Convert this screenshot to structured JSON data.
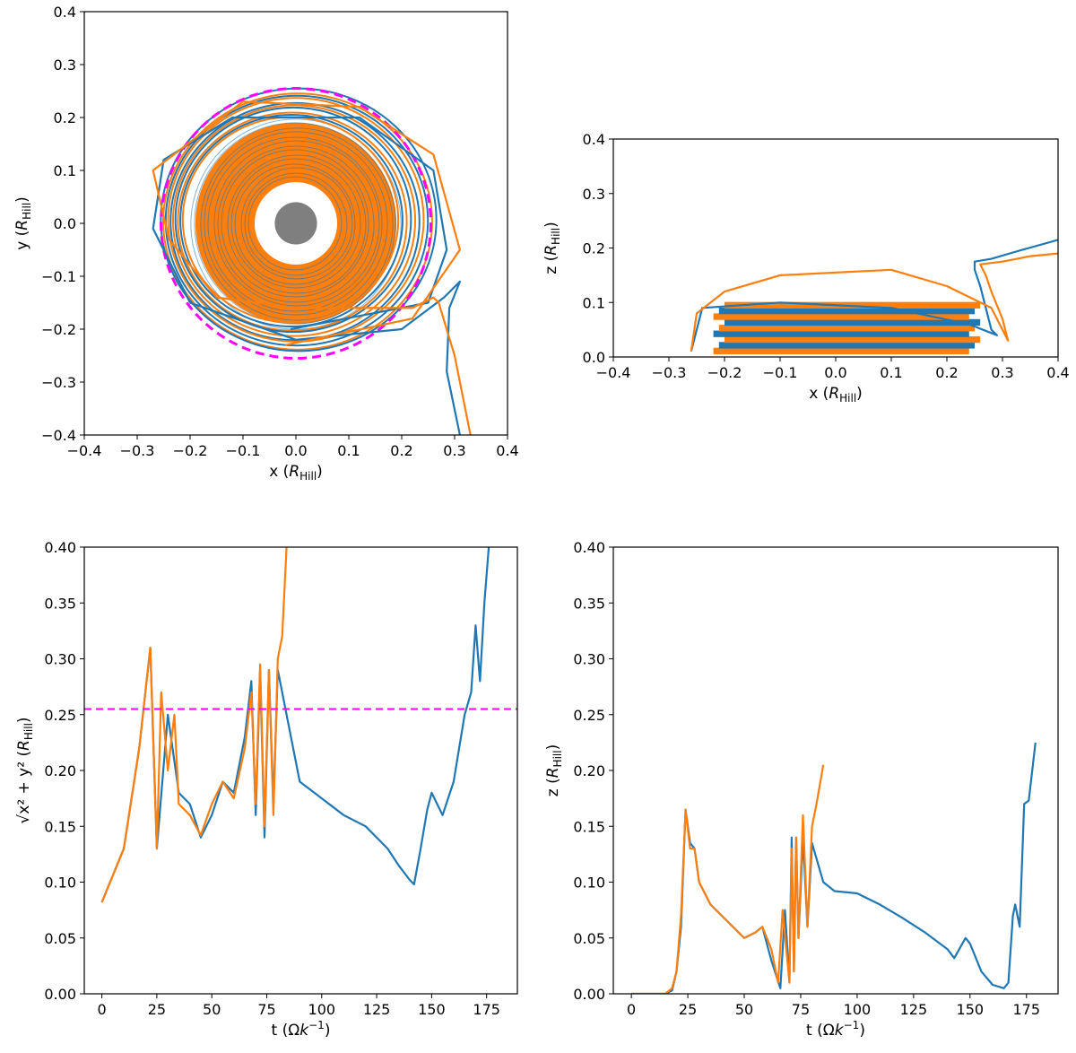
{
  "colors": {
    "series_blue": "#1f77b4",
    "series_orange": "#ff7f0e",
    "reference": "#ff00ff",
    "planet": "#7f7f7f",
    "axes": "#000000"
  },
  "chart_data": [
    {
      "id": "xy",
      "type": "line",
      "title": "",
      "xlabel": {
        "main": "x (",
        "italic": "R",
        "sub": "Hill",
        "close": ")"
      },
      "ylabel": {
        "main": "y (",
        "italic": "R",
        "sub": "Hill",
        "close": ")"
      },
      "xlim": [
        -0.4,
        0.4
      ],
      "ylim": [
        -0.4,
        0.4
      ],
      "xticks": [
        "−0.4",
        "−0.3",
        "−0.2",
        "−0.1",
        "0.0",
        "0.1",
        "0.2",
        "0.3",
        "0.4"
      ],
      "yticks": [
        "−0.4",
        "−0.3",
        "−0.2",
        "−0.1",
        "0.0",
        "0.1",
        "0.2",
        "0.3",
        "0.4"
      ],
      "reference_circle_radius": 0.255,
      "planet_radius": 0.04,
      "clear_radius": 0.078,
      "disk_outer_radius": 0.19,
      "series": [
        {
          "name": "blue",
          "x": [
            -0.01,
            0.25,
            0.285,
            0.26,
            0.12,
            -0.12,
            -0.25,
            -0.27,
            -0.2,
            0.0,
            0.2,
            0.28,
            0.3,
            0.31,
            0.29,
            0.285,
            0.31
          ],
          "y": [
            -0.2,
            -0.15,
            -0.05,
            0.1,
            0.2,
            0.2,
            0.12,
            -0.01,
            -0.15,
            -0.22,
            -0.2,
            -0.14,
            -0.12,
            -0.11,
            -0.16,
            -0.28,
            -0.4
          ]
        },
        {
          "name": "orange",
          "x": [
            -0.02,
            0.22,
            0.31,
            0.26,
            0.12,
            -0.1,
            -0.27,
            -0.24,
            -0.15,
            0.0,
            0.22,
            0.26,
            0.27,
            0.3,
            0.33
          ],
          "y": [
            -0.23,
            -0.18,
            -0.05,
            0.13,
            0.22,
            0.23,
            0.1,
            -0.03,
            -0.14,
            -0.16,
            -0.16,
            -0.14,
            -0.15,
            -0.25,
            -0.4
          ]
        }
      ]
    },
    {
      "id": "xz",
      "type": "line",
      "title": "",
      "xlabel": {
        "main": "x (",
        "italic": "R",
        "sub": "Hill",
        "close": ")"
      },
      "ylabel": {
        "main": "z (",
        "italic": "R",
        "sub": "Hill",
        "close": ")"
      },
      "xlim": [
        -0.4,
        0.4
      ],
      "ylim": [
        0.0,
        0.4
      ],
      "xticks": [
        "−0.4",
        "−0.3",
        "−0.2",
        "−0.1",
        "0.0",
        "0.1",
        "0.2",
        "0.3",
        "0.4"
      ],
      "yticks": [
        "0.0",
        "0.1",
        "0.2",
        "0.3",
        "0.4"
      ],
      "series": [
        {
          "name": "blue",
          "x": [
            -0.26,
            -0.25,
            -0.24,
            -0.1,
            0.1,
            0.24,
            0.29,
            0.28,
            0.27,
            0.26,
            0.25,
            0.25,
            0.28,
            0.33,
            0.4
          ],
          "y": [
            0.01,
            0.05,
            0.09,
            0.1,
            0.09,
            0.06,
            0.04,
            0.05,
            0.09,
            0.13,
            0.16,
            0.175,
            0.18,
            0.195,
            0.215
          ]
        },
        {
          "name": "orange",
          "x": [
            -0.26,
            -0.25,
            -0.2,
            -0.1,
            0.1,
            0.2,
            0.28,
            0.31,
            0.3,
            0.28,
            0.27,
            0.26,
            0.3,
            0.35,
            0.4
          ],
          "y": [
            0.01,
            0.08,
            0.12,
            0.15,
            0.16,
            0.13,
            0.09,
            0.03,
            0.07,
            0.12,
            0.15,
            0.17,
            0.175,
            0.185,
            0.19
          ]
        }
      ]
    },
    {
      "id": "rt",
      "type": "line",
      "title": "",
      "xlabel": {
        "main": "t (Ω",
        "italic": "k",
        "sup": "−1",
        "close": ")"
      },
      "ylabel": {
        "main": "√x² + y² (",
        "italic": "R",
        "sub": "Hill",
        "close": ")"
      },
      "xlim": [
        -8,
        189
      ],
      "ylim": [
        0.0,
        0.4
      ],
      "xticks": [
        "0",
        "25",
        "50",
        "75",
        "100",
        "125",
        "150",
        "175"
      ],
      "yticks": [
        "0.00",
        "0.05",
        "0.10",
        "0.15",
        "0.20",
        "0.25",
        "0.30",
        "0.35",
        "0.40"
      ],
      "reference_line": 0.255,
      "series": [
        {
          "name": "blue",
          "x": [
            0,
            10,
            17,
            22,
            25,
            30,
            35,
            40,
            45,
            50,
            55,
            60,
            65,
            68,
            70,
            72,
            74,
            76,
            78,
            80,
            90,
            100,
            110,
            120,
            130,
            135,
            140,
            142,
            145,
            148,
            150,
            155,
            160,
            165,
            168,
            170,
            172,
            174,
            176
          ],
          "y": [
            0.082,
            0.13,
            0.22,
            0.31,
            0.13,
            0.25,
            0.18,
            0.17,
            0.14,
            0.16,
            0.19,
            0.18,
            0.23,
            0.28,
            0.16,
            0.29,
            0.14,
            0.29,
            0.17,
            0.29,
            0.19,
            0.175,
            0.16,
            0.15,
            0.13,
            0.115,
            0.102,
            0.098,
            0.13,
            0.165,
            0.18,
            0.16,
            0.19,
            0.25,
            0.27,
            0.33,
            0.28,
            0.35,
            0.4
          ]
        },
        {
          "name": "orange",
          "x": [
            0,
            10,
            17,
            22,
            25,
            27,
            30,
            33,
            35,
            40,
            45,
            50,
            55,
            60,
            65,
            68,
            70,
            72,
            74,
            76,
            78,
            80,
            82,
            84
          ],
          "y": [
            0.082,
            0.13,
            0.22,
            0.31,
            0.13,
            0.27,
            0.2,
            0.25,
            0.17,
            0.16,
            0.142,
            0.17,
            0.19,
            0.175,
            0.22,
            0.27,
            0.17,
            0.295,
            0.15,
            0.29,
            0.16,
            0.3,
            0.32,
            0.4
          ]
        }
      ]
    },
    {
      "id": "zt",
      "type": "line",
      "title": "",
      "xlabel": {
        "main": "t (Ω",
        "italic": "k",
        "sup": "−1",
        "close": ")"
      },
      "ylabel": {
        "main": "z (",
        "italic": "R",
        "sub": "Hill",
        "close": ")"
      },
      "xlim": [
        -8,
        189
      ],
      "ylim": [
        0.0,
        0.4
      ],
      "xticks": [
        "0",
        "25",
        "50",
        "75",
        "100",
        "125",
        "150",
        "175"
      ],
      "yticks": [
        "0.00",
        "0.05",
        "0.10",
        "0.15",
        "0.20",
        "0.25",
        "0.30",
        "0.35",
        "0.40"
      ],
      "series": [
        {
          "name": "blue",
          "x": [
            0,
            15,
            18,
            20,
            22,
            24,
            26,
            28,
            30,
            35,
            40,
            50,
            55,
            58,
            62,
            66,
            68,
            70,
            71,
            72,
            73,
            74,
            76,
            78,
            80,
            85,
            90,
            100,
            110,
            120,
            130,
            140,
            143,
            148,
            150,
            155,
            160,
            165,
            167,
            169,
            170,
            172,
            174,
            176,
            179
          ],
          "y": [
            0.0,
            0.0,
            0.003,
            0.02,
            0.06,
            0.165,
            0.135,
            0.13,
            0.1,
            0.08,
            0.07,
            0.05,
            0.055,
            0.06,
            0.03,
            0.005,
            0.075,
            0.01,
            0.14,
            0.02,
            0.14,
            0.05,
            0.14,
            0.06,
            0.135,
            0.1,
            0.092,
            0.09,
            0.08,
            0.068,
            0.055,
            0.04,
            0.032,
            0.05,
            0.045,
            0.02,
            0.008,
            0.005,
            0.01,
            0.07,
            0.08,
            0.06,
            0.17,
            0.173,
            0.225
          ]
        },
        {
          "name": "orange",
          "x": [
            0,
            15,
            18,
            20,
            22,
            24,
            26,
            28,
            30,
            35,
            40,
            45,
            50,
            55,
            58,
            62,
            65,
            67,
            70,
            71,
            72,
            73,
            74,
            76,
            78,
            80,
            82,
            85
          ],
          "y": [
            0.0,
            0.0,
            0.005,
            0.02,
            0.07,
            0.165,
            0.13,
            0.13,
            0.1,
            0.08,
            0.07,
            0.06,
            0.05,
            0.055,
            0.06,
            0.04,
            0.01,
            0.075,
            0.01,
            0.13,
            0.02,
            0.14,
            0.05,
            0.16,
            0.06,
            0.15,
            0.17,
            0.205
          ]
        }
      ]
    }
  ]
}
